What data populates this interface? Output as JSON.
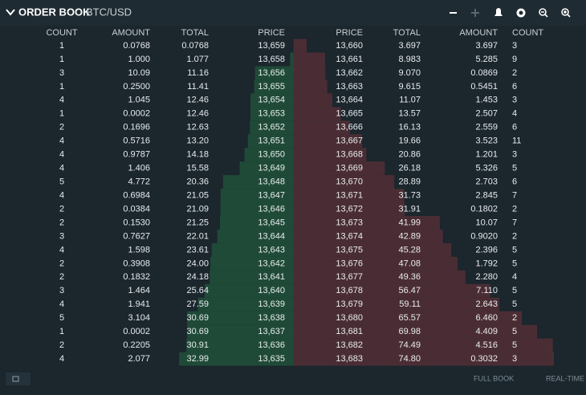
{
  "header": {
    "title": "ORDER BOOK",
    "pair": "BTC/USD"
  },
  "bids": {
    "columns": [
      "COUNT",
      "AMOUNT",
      "TOTAL",
      "PRICE"
    ],
    "rows": [
      [
        "1",
        "0.0768",
        "0.0768",
        "13,659"
      ],
      [
        "1",
        "1.000",
        "1.077",
        "13,658"
      ],
      [
        "3",
        "10.09",
        "11.16",
        "13,656"
      ],
      [
        "1",
        "0.2500",
        "11.41",
        "13,655"
      ],
      [
        "4",
        "1.045",
        "12.46",
        "13,654"
      ],
      [
        "1",
        "0.0002",
        "12.46",
        "13,653"
      ],
      [
        "2",
        "0.1696",
        "12.63",
        "13,652"
      ],
      [
        "4",
        "0.5716",
        "13.20",
        "13,651"
      ],
      [
        "4",
        "0.9787",
        "14.18",
        "13,650"
      ],
      [
        "4",
        "1.406",
        "15.58",
        "13,649"
      ],
      [
        "5",
        "4.772",
        "20.36",
        "13,648"
      ],
      [
        "4",
        "0.6984",
        "21.05",
        "13,647"
      ],
      [
        "2",
        "0.0384",
        "21.09",
        "13,646"
      ],
      [
        "2",
        "0.1530",
        "21.25",
        "13,645"
      ],
      [
        "3",
        "0.7627",
        "22.01",
        "13,644"
      ],
      [
        "4",
        "1.598",
        "23.61",
        "13,643"
      ],
      [
        "2",
        "0.3908",
        "24.00",
        "13,642"
      ],
      [
        "2",
        "0.1832",
        "24.18",
        "13,641"
      ],
      [
        "3",
        "1.464",
        "25.64",
        "13,640"
      ],
      [
        "4",
        "1.941",
        "27.59",
        "13,639"
      ],
      [
        "5",
        "3.104",
        "30.69",
        "13,638"
      ],
      [
        "1",
        "0.0002",
        "30.69",
        "13,637"
      ],
      [
        "2",
        "0.2205",
        "30.91",
        "13,636"
      ],
      [
        "4",
        "2.077",
        "32.99",
        "13,635"
      ]
    ]
  },
  "asks": {
    "columns": [
      "PRICE",
      "TOTAL",
      "AMOUNT",
      "COUNT"
    ],
    "rows": [
      [
        "13,660",
        "3.697",
        "3.697",
        "3"
      ],
      [
        "13,661",
        "8.983",
        "5.285",
        "9"
      ],
      [
        "13,662",
        "9.070",
        "0.0869",
        "2"
      ],
      [
        "13,663",
        "9.615",
        "0.5451",
        "6"
      ],
      [
        "13,664",
        "11.07",
        "1.453",
        "3"
      ],
      [
        "13,665",
        "13.57",
        "2.507",
        "4"
      ],
      [
        "13,666",
        "16.13",
        "2.559",
        "6"
      ],
      [
        "13,667",
        "19.66",
        "3.523",
        "11"
      ],
      [
        "13,668",
        "20.86",
        "1.201",
        "3"
      ],
      [
        "13,669",
        "26.18",
        "5.326",
        "5"
      ],
      [
        "13,670",
        "28.89",
        "2.703",
        "6"
      ],
      [
        "13,671",
        "31.73",
        "2.845",
        "7"
      ],
      [
        "13,672",
        "31.91",
        "0.1802",
        "2"
      ],
      [
        "13,673",
        "41.99",
        "10.07",
        "7"
      ],
      [
        "13,674",
        "42.89",
        "0.9020",
        "2"
      ],
      [
        "13,675",
        "45.28",
        "2.396",
        "5"
      ],
      [
        "13,676",
        "47.08",
        "1.792",
        "5"
      ],
      [
        "13,677",
        "49.36",
        "2.280",
        "4"
      ],
      [
        "13,678",
        "56.47",
        "7.110",
        "5"
      ],
      [
        "13,679",
        "59.11",
        "2.643",
        "5"
      ],
      [
        "13,680",
        "65.57",
        "6.460",
        "2"
      ],
      [
        "13,681",
        "69.98",
        "4.409",
        "5"
      ],
      [
        "13,682",
        "74.49",
        "4.516",
        "5"
      ],
      [
        "13,683",
        "74.80",
        "0.3032",
        "3"
      ]
    ]
  },
  "footer": {
    "full_book": "FULL BOOK",
    "real_time": "REAL-TIME"
  }
}
